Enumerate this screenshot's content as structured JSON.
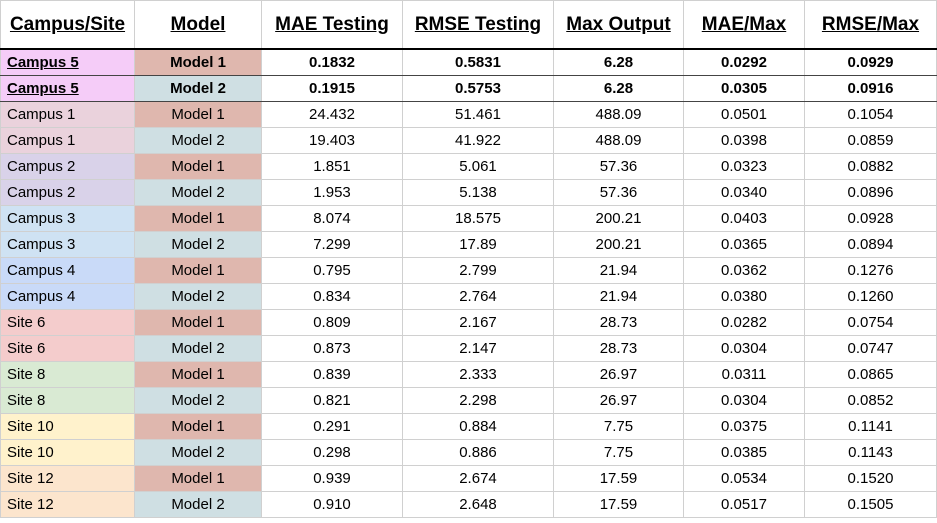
{
  "table": {
    "headers": [
      "Campus/Site",
      "Model",
      "MAE Testing",
      "RMSE Testing",
      "Max Output",
      "MAE/Max",
      "RMSE/Max"
    ],
    "colors": {
      "model_1": "#dfb7ae",
      "model_2": "#cfdfe3",
      "campus_5": "#f5ccf8",
      "campus_1": "#ead2dc",
      "campus_2": "#d9d2e9",
      "campus_3": "#cfe2f3",
      "campus_4": "#c9daf8",
      "site_6": "#f4cccc",
      "site_8": "#d9ead3",
      "site_10": "#fff2cc",
      "site_12": "#fce5cd"
    },
    "rows": [
      {
        "site": "Campus 5",
        "model": "Model 1",
        "mae": "0.1832",
        "rmse": "0.5831",
        "max": "6.28",
        "mae_max": "0.0292",
        "rmse_max": "0.0929",
        "site_color": "#f5ccf8",
        "model_color": "#dfb7ae",
        "highlight": true
      },
      {
        "site": "Campus 5",
        "model": "Model 2",
        "mae": "0.1915",
        "rmse": "0.5753",
        "max": "6.28",
        "mae_max": "0.0305",
        "rmse_max": "0.0916",
        "site_color": "#f5ccf8",
        "model_color": "#cfdfe3",
        "highlight": true
      },
      {
        "site": "Campus 1",
        "model": "Model 1",
        "mae": "24.432",
        "rmse": "51.461",
        "max": "488.09",
        "mae_max": "0.0501",
        "rmse_max": "0.1054",
        "site_color": "#ead2dc",
        "model_color": "#dfb7ae",
        "highlight": false
      },
      {
        "site": "Campus 1",
        "model": "Model 2",
        "mae": "19.403",
        "rmse": "41.922",
        "max": "488.09",
        "mae_max": "0.0398",
        "rmse_max": "0.0859",
        "site_color": "#ead2dc",
        "model_color": "#cfdfe3",
        "highlight": false
      },
      {
        "site": "Campus 2",
        "model": "Model 1",
        "mae": "1.851",
        "rmse": "5.061",
        "max": "57.36",
        "mae_max": "0.0323",
        "rmse_max": "0.0882",
        "site_color": "#d9d2e9",
        "model_color": "#dfb7ae",
        "highlight": false
      },
      {
        "site": "Campus 2",
        "model": "Model 2",
        "mae": "1.953",
        "rmse": "5.138",
        "max": "57.36",
        "mae_max": "0.0340",
        "rmse_max": "0.0896",
        "site_color": "#d9d2e9",
        "model_color": "#cfdfe3",
        "highlight": false
      },
      {
        "site": "Campus 3",
        "model": "Model 1",
        "mae": "8.074",
        "rmse": "18.575",
        "max": "200.21",
        "mae_max": "0.0403",
        "rmse_max": "0.0928",
        "site_color": "#cfe2f3",
        "model_color": "#dfb7ae",
        "highlight": false
      },
      {
        "site": "Campus 3",
        "model": "Model 2",
        "mae": "7.299",
        "rmse": "17.89",
        "max": "200.21",
        "mae_max": "0.0365",
        "rmse_max": "0.0894",
        "site_color": "#cfe2f3",
        "model_color": "#cfdfe3",
        "highlight": false
      },
      {
        "site": "Campus 4",
        "model": "Model 1",
        "mae": "0.795",
        "rmse": "2.799",
        "max": "21.94",
        "mae_max": "0.0362",
        "rmse_max": "0.1276",
        "site_color": "#c9daf8",
        "model_color": "#dfb7ae",
        "highlight": false
      },
      {
        "site": "Campus 4",
        "model": "Model 2",
        "mae": "0.834",
        "rmse": "2.764",
        "max": "21.94",
        "mae_max": "0.0380",
        "rmse_max": "0.1260",
        "site_color": "#c9daf8",
        "model_color": "#cfdfe3",
        "highlight": false
      },
      {
        "site": "Site 6",
        "model": "Model 1",
        "mae": "0.809",
        "rmse": "2.167",
        "max": "28.73",
        "mae_max": "0.0282",
        "rmse_max": "0.0754",
        "site_color": "#f4cccc",
        "model_color": "#dfb7ae",
        "highlight": false
      },
      {
        "site": "Site 6",
        "model": "Model 2",
        "mae": "0.873",
        "rmse": "2.147",
        "max": "28.73",
        "mae_max": "0.0304",
        "rmse_max": "0.0747",
        "site_color": "#f4cccc",
        "model_color": "#cfdfe3",
        "highlight": false
      },
      {
        "site": "Site 8",
        "model": "Model 1",
        "mae": "0.839",
        "rmse": "2.333",
        "max": "26.97",
        "mae_max": "0.0311",
        "rmse_max": "0.0865",
        "site_color": "#d9ead3",
        "model_color": "#dfb7ae",
        "highlight": false
      },
      {
        "site": "Site 8",
        "model": "Model 2",
        "mae": "0.821",
        "rmse": "2.298",
        "max": "26.97",
        "mae_max": "0.0304",
        "rmse_max": "0.0852",
        "site_color": "#d9ead3",
        "model_color": "#cfdfe3",
        "highlight": false
      },
      {
        "site": "Site 10",
        "model": "Model 1",
        "mae": "0.291",
        "rmse": "0.884",
        "max": "7.75",
        "mae_max": "0.0375",
        "rmse_max": "0.1141",
        "site_color": "#fff2cc",
        "model_color": "#dfb7ae",
        "highlight": false
      },
      {
        "site": "Site 10",
        "model": "Model 2",
        "mae": "0.298",
        "rmse": "0.886",
        "max": "7.75",
        "mae_max": "0.0385",
        "rmse_max": "0.1143",
        "site_color": "#fff2cc",
        "model_color": "#cfdfe3",
        "highlight": false
      },
      {
        "site": "Site 12",
        "model": "Model 1",
        "mae": "0.939",
        "rmse": "2.674",
        "max": "17.59",
        "mae_max": "0.0534",
        "rmse_max": "0.1520",
        "site_color": "#fce5cd",
        "model_color": "#dfb7ae",
        "highlight": false
      },
      {
        "site": "Site 12",
        "model": "Model 2",
        "mae": "0.910",
        "rmse": "2.648",
        "max": "17.59",
        "mae_max": "0.0517",
        "rmse_max": "0.1505",
        "site_color": "#fce5cd",
        "model_color": "#cfdfe3",
        "highlight": false
      }
    ]
  }
}
